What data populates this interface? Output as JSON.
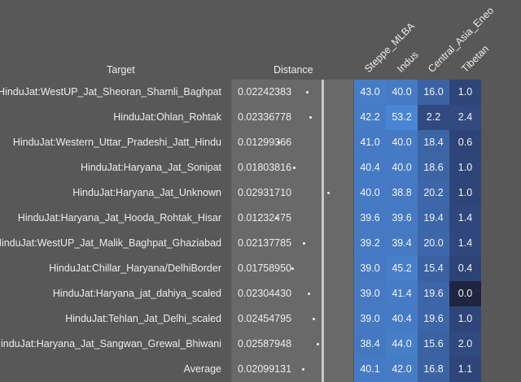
{
  "headers": {
    "target": "Target",
    "distance": "Distance",
    "cols": [
      "Steppe_MLBA",
      "Indus",
      "Central_Asia_Eneo",
      "Tibetan"
    ]
  },
  "rows": [
    {
      "target": "HinduJat:WestUP_Jat_Sheoran_Shamli_Baghpat",
      "distance": "0.02242383",
      "values": [
        "43.0",
        "40.0",
        "16.0",
        "1.0"
      ]
    },
    {
      "target": "HinduJat:Ohlan_Rohtak",
      "distance": "0.02336778",
      "values": [
        "42.2",
        "53.2",
        "2.2",
        "2.4"
      ]
    },
    {
      "target": "HinduJat:Western_Uttar_Pradeshi_Jatt_Hindu",
      "distance": "0.01299366",
      "values": [
        "41.0",
        "40.0",
        "18.4",
        "0.6"
      ]
    },
    {
      "target": "HinduJat:Haryana_Jat_Sonipat",
      "distance": "0.01803816",
      "values": [
        "40.4",
        "40.0",
        "18.6",
        "1.0"
      ]
    },
    {
      "target": "HinduJat:Haryana_Jat_Unknown",
      "distance": "0.02931710",
      "values": [
        "40.0",
        "38.8",
        "20.2",
        "1.0"
      ]
    },
    {
      "target": "HinduJat:Haryana_Jat_Hooda_Rohtak_Hisar",
      "distance": "0.01232475",
      "values": [
        "39.6",
        "39.6",
        "19.4",
        "1.4"
      ]
    },
    {
      "target": "HinduJat:WestUP_Jat_Malik_Baghpat_Ghaziabad",
      "distance": "0.02137785",
      "values": [
        "39.2",
        "39.4",
        "20.0",
        "1.4"
      ]
    },
    {
      "target": "HinduJat:Chillar_Haryana/DelhiBorder",
      "distance": "0.01758950",
      "values": [
        "39.0",
        "45.2",
        "15.4",
        "0.4"
      ]
    },
    {
      "target": "HinduJat:Haryana_jat_dahiya_scaled",
      "distance": "0.02304430",
      "values": [
        "39.0",
        "41.4",
        "19.6",
        "0.0"
      ]
    },
    {
      "target": "HinduJat:Tehlan_Jat_Delhi_scaled",
      "distance": "0.02454795",
      "values": [
        "39.0",
        "40.4",
        "19.6",
        "1.0"
      ]
    },
    {
      "target": "HinduJat:Haryana_Jat_Sangwan_Grewal_Bhiwani",
      "distance": "0.02587948",
      "values": [
        "38.4",
        "44.0",
        "15.6",
        "2.0"
      ]
    },
    {
      "target": "Average",
      "distance": "0.02099131",
      "values": [
        "40.1",
        "42.0",
        "16.8",
        "1.1"
      ]
    }
  ],
  "dist_scale": [
    0.0,
    0.04
  ],
  "colors": {
    "background": "#585858",
    "distance_bg": "#696969",
    "high_blue": "#4a86d4",
    "low_navy": "#2b3d6e",
    "zero": "#1f2540"
  }
}
